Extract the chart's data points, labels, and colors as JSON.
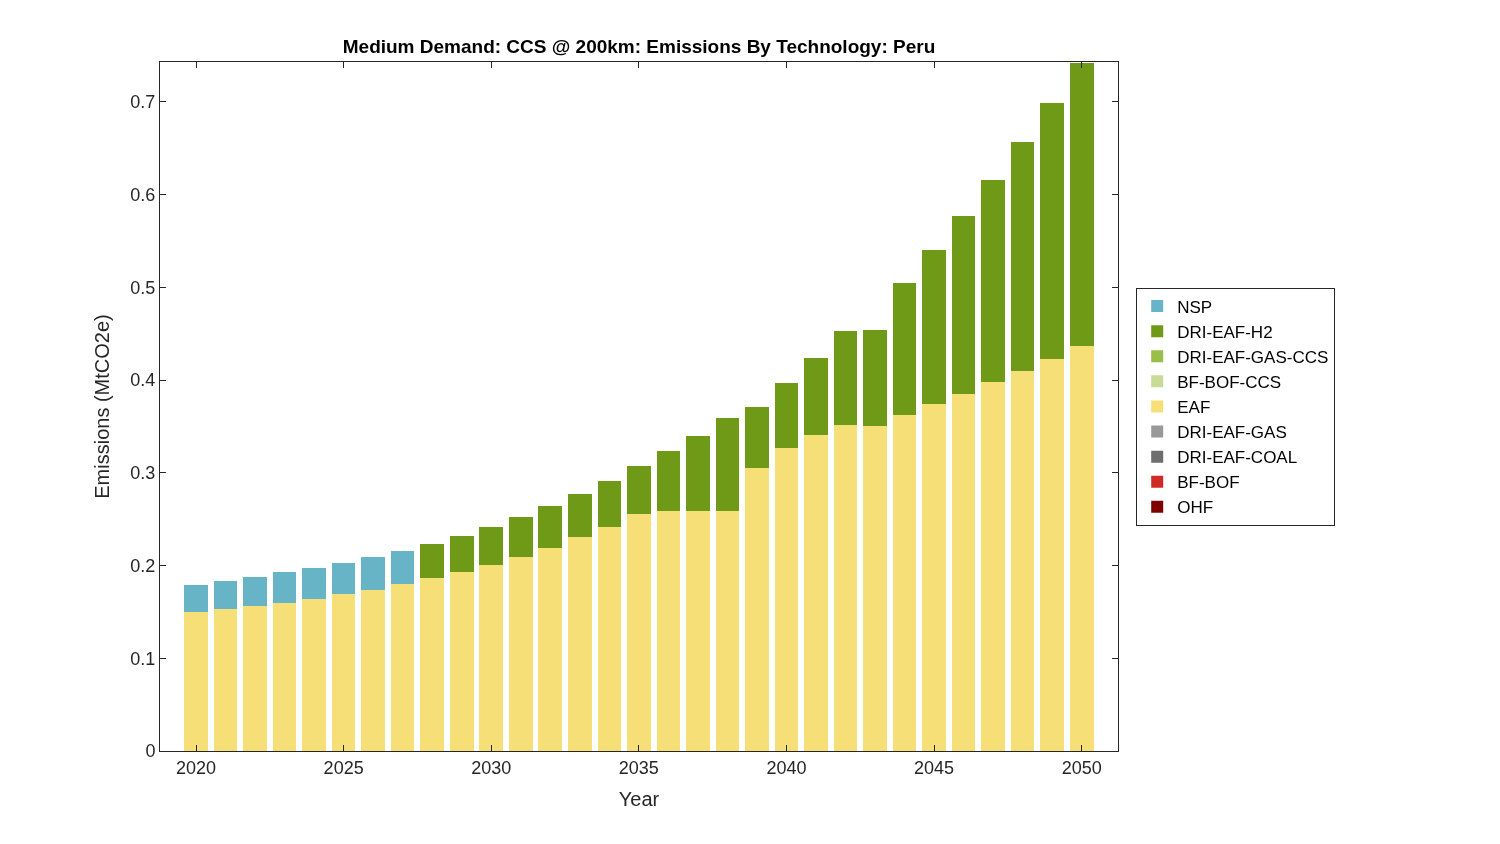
{
  "chart_data": {
    "type": "bar",
    "stacked": true,
    "title": "Medium Demand: CCS @ 200km: Emissions By Technology: Peru",
    "xlabel": "Year",
    "ylabel": "Emissions (MtCO2e)",
    "x": [
      2020,
      2021,
      2022,
      2023,
      2024,
      2025,
      2026,
      2027,
      2028,
      2029,
      2030,
      2031,
      2032,
      2033,
      2034,
      2035,
      2036,
      2037,
      2038,
      2039,
      2040,
      2041,
      2042,
      2043,
      2044,
      2045,
      2046,
      2047,
      2048,
      2049,
      2050
    ],
    "xlim": [
      2018.78,
      2051.23
    ],
    "xticks": [
      2020,
      2025,
      2030,
      2035,
      2040,
      2045,
      2050
    ],
    "ylim": [
      0,
      0.743
    ],
    "yticks": [
      0,
      0.1,
      0.2,
      0.3,
      0.4,
      0.5,
      0.6,
      0.7
    ],
    "legend": "right",
    "series": [
      {
        "name": "OHF",
        "color": "#7f0000",
        "values": [
          0,
          0,
          0,
          0,
          0,
          0,
          0,
          0,
          0,
          0,
          0,
          0,
          0,
          0,
          0,
          0,
          0,
          0,
          0,
          0,
          0,
          0,
          0,
          0,
          0,
          0,
          0,
          0,
          0,
          0,
          0
        ]
      },
      {
        "name": "BF-BOF",
        "color": "#d02a26",
        "values": [
          0,
          0,
          0,
          0,
          0,
          0,
          0,
          0,
          0,
          0,
          0,
          0,
          0,
          0,
          0,
          0,
          0,
          0,
          0,
          0,
          0,
          0,
          0,
          0,
          0,
          0,
          0,
          0,
          0,
          0,
          0
        ]
      },
      {
        "name": "DRI-EAF-COAL",
        "color": "#6e6e6e",
        "values": [
          0,
          0,
          0,
          0,
          0,
          0,
          0,
          0,
          0,
          0,
          0,
          0,
          0,
          0,
          0,
          0,
          0,
          0,
          0,
          0,
          0,
          0,
          0,
          0,
          0,
          0,
          0,
          0,
          0,
          0,
          0
        ]
      },
      {
        "name": "DRI-EAF-GAS",
        "color": "#999999",
        "values": [
          0,
          0,
          0,
          0,
          0,
          0,
          0,
          0,
          0,
          0,
          0,
          0,
          0,
          0,
          0,
          0,
          0,
          0,
          0,
          0,
          0,
          0,
          0,
          0,
          0,
          0,
          0,
          0,
          0,
          0,
          0
        ]
      },
      {
        "name": "EAF",
        "color": "#f7df77",
        "values": [
          0.15,
          0.153,
          0.156,
          0.16,
          0.164,
          0.169,
          0.174,
          0.18,
          0.187,
          0.193,
          0.201,
          0.209,
          0.219,
          0.231,
          0.242,
          0.256,
          0.259,
          0.259,
          0.259,
          0.305,
          0.327,
          0.341,
          0.352,
          0.35,
          0.362,
          0.374,
          0.385,
          0.398,
          0.41,
          0.423,
          0.437
        ]
      },
      {
        "name": "BF-BOF-CCS",
        "color": "#c8dc98",
        "values": [
          0,
          0,
          0,
          0,
          0,
          0,
          0,
          0,
          0,
          0,
          0,
          0,
          0,
          0,
          0,
          0,
          0,
          0,
          0,
          0,
          0,
          0,
          0,
          0,
          0,
          0,
          0,
          0,
          0,
          0,
          0
        ]
      },
      {
        "name": "DRI-EAF-GAS-CCS",
        "color": "#99bf4a",
        "values": [
          0,
          0,
          0,
          0,
          0,
          0,
          0,
          0,
          0,
          0,
          0,
          0,
          0,
          0,
          0,
          0,
          0,
          0,
          0,
          0,
          0,
          0,
          0,
          0,
          0,
          0,
          0,
          0,
          0,
          0,
          0
        ]
      },
      {
        "name": "DRI-EAF-H2",
        "color": "#6f9a17",
        "values": [
          0,
          0,
          0,
          0,
          0,
          0,
          0,
          0,
          0.036,
          0.039,
          0.041,
          0.043,
          0.045,
          0.046,
          0.049,
          0.051,
          0.064,
          0.081,
          0.1,
          0.066,
          0.07,
          0.083,
          0.101,
          0.104,
          0.143,
          0.166,
          0.192,
          0.218,
          0.247,
          0.276,
          0.305
        ]
      },
      {
        "name": "NSP",
        "color": "#67b4c6",
        "values": [
          0.029,
          0.03,
          0.032,
          0.033,
          0.033,
          0.034,
          0.035,
          0.036,
          0,
          0,
          0,
          0,
          0,
          0,
          0,
          0,
          0,
          0,
          0,
          0,
          0,
          0,
          0,
          0,
          0,
          0,
          0,
          0,
          0,
          0,
          0
        ]
      }
    ]
  }
}
